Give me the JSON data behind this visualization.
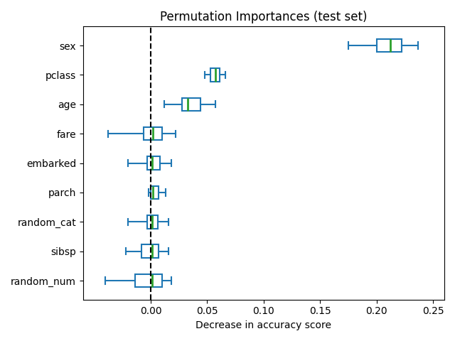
{
  "title": "Permutation Importances (test set)",
  "xlabel": "Decrease in accuracy score",
  "features": [
    "sex",
    "pclass",
    "age",
    "fare",
    "embarked",
    "parch",
    "random_cat",
    "sibsp",
    "random_num"
  ],
  "box_data": [
    {
      "whislo": 0.175,
      "q1": 0.2,
      "med": 0.212,
      "q3": 0.222,
      "whishi": 0.237
    },
    {
      "whislo": 0.048,
      "q1": 0.053,
      "med": 0.057,
      "q3": 0.061,
      "whishi": 0.066
    },
    {
      "whislo": 0.012,
      "q1": 0.028,
      "med": 0.033,
      "q3": 0.044,
      "whishi": 0.057
    },
    {
      "whislo": -0.038,
      "q1": -0.006,
      "med": 0.002,
      "q3": 0.01,
      "whishi": 0.022
    },
    {
      "whislo": -0.02,
      "q1": -0.003,
      "med": 0.001,
      "q3": 0.008,
      "whishi": 0.018
    },
    {
      "whislo": -0.002,
      "q1": 0.0,
      "med": 0.002,
      "q3": 0.007,
      "whishi": 0.013
    },
    {
      "whislo": -0.02,
      "q1": -0.003,
      "med": 0.001,
      "q3": 0.006,
      "whishi": 0.016
    },
    {
      "whislo": -0.022,
      "q1": -0.008,
      "med": 0.001,
      "q3": 0.007,
      "whishi": 0.016
    },
    {
      "whislo": -0.04,
      "q1": -0.014,
      "med": 0.001,
      "q3": 0.01,
      "whishi": 0.018
    }
  ],
  "box_color": "#1f77b4",
  "median_color": "#2ca02c",
  "xlim": [
    -0.06,
    0.26
  ],
  "xticks": [
    0.0,
    0.05,
    0.1,
    0.15,
    0.2,
    0.25
  ],
  "xtick_labels": [
    "0.00",
    "0.05",
    "0.10",
    "0.15",
    "0.20",
    "0.25"
  ],
  "vline_x": 0.0,
  "figsize": [
    6.4,
    4.8
  ],
  "dpi": 100,
  "box_width": 0.45,
  "linewidth": 1.5
}
